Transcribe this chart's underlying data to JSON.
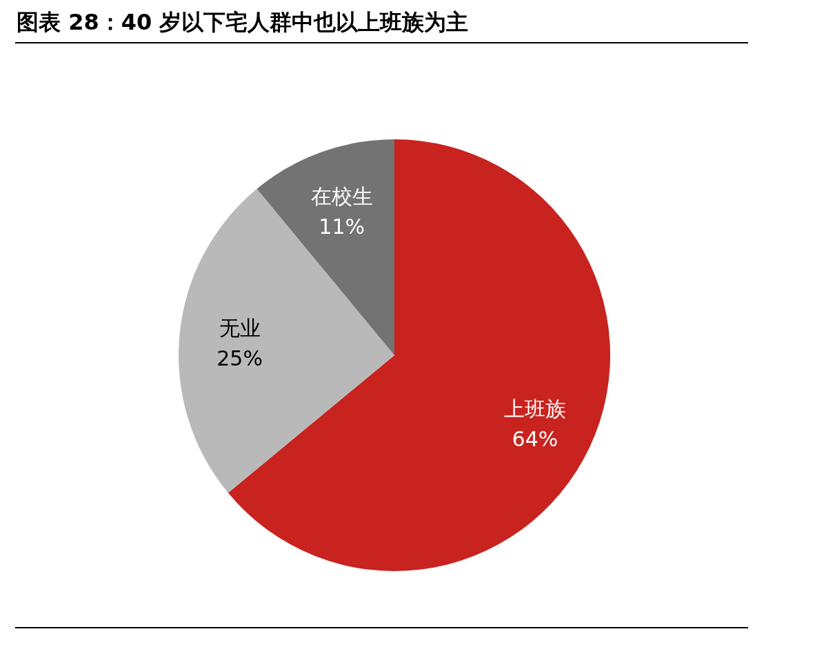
{
  "chart_data": {
    "type": "pie",
    "title": "图表 28：40 岁以下宅人群中也以上班族为主",
    "categories": [
      "上班族",
      "无业",
      "在校生"
    ],
    "values": [
      64,
      25,
      11
    ],
    "colors": [
      "#c8231f",
      "#b9b9b9",
      "#737373"
    ],
    "value_labels": [
      "64%",
      "25%",
      "11%"
    ]
  }
}
